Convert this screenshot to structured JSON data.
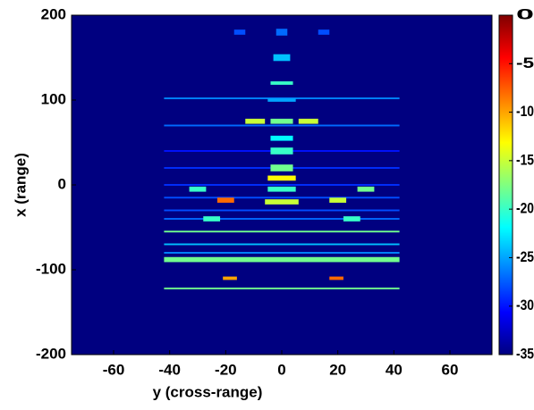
{
  "chart_data": {
    "type": "heatmap",
    "xlabel": "y (cross-range)",
    "ylabel": "x (range)",
    "xlim": [
      -75,
      75
    ],
    "ylim": [
      -200,
      200
    ],
    "xticks": [
      -60,
      -40,
      -20,
      0,
      20,
      40,
      60
    ],
    "yticks": [
      -200,
      -100,
      0,
      100,
      200
    ],
    "clim": [
      -35,
      0
    ],
    "cticks": [
      -35,
      -30,
      -25,
      -20,
      -15,
      -10,
      -5,
      0
    ],
    "colormap": "jet",
    "background": -35,
    "cells": [
      {
        "x": [
          -42,
          42
        ],
        "y": [
          -123,
          -121
        ],
        "value": -18
      },
      {
        "x": [
          -42,
          42
        ],
        "y": [
          -91,
          -85
        ],
        "value": -18
      },
      {
        "x": [
          -42,
          42
        ],
        "y": [
          -81,
          -79
        ],
        "value": -26
      },
      {
        "x": [
          -42,
          42
        ],
        "y": [
          -71,
          -69
        ],
        "value": -24
      },
      {
        "x": [
          -42,
          42
        ],
        "y": [
          -56,
          -54
        ],
        "value": -18
      },
      {
        "x": [
          -42,
          42
        ],
        "y": [
          -41,
          -39
        ],
        "value": -27
      },
      {
        "x": [
          -42,
          42
        ],
        "y": [
          -31,
          -29
        ],
        "value": -28
      },
      {
        "x": [
          -42,
          42
        ],
        "y": [
          -16,
          -14
        ],
        "value": -28
      },
      {
        "x": [
          -42,
          42
        ],
        "y": [
          -1,
          1
        ],
        "value": -29
      },
      {
        "x": [
          -42,
          42
        ],
        "y": [
          19,
          21
        ],
        "value": -29
      },
      {
        "x": [
          -42,
          42
        ],
        "y": [
          39,
          41
        ],
        "value": -30
      },
      {
        "x": [
          -42,
          42
        ],
        "y": [
          69,
          71
        ],
        "value": -27
      },
      {
        "x": [
          -42,
          42
        ],
        "y": [
          101,
          103
        ],
        "value": -26
      },
      {
        "x": [
          -4,
          4
        ],
        "y": [
          118,
          122
        ],
        "value": -20
      },
      {
        "x": [
          -5,
          5
        ],
        "y": [
          98,
          102
        ],
        "value": -25
      },
      {
        "x": [
          -4,
          4
        ],
        "y": [
          72,
          78
        ],
        "value": -18
      },
      {
        "x": [
          -4,
          4
        ],
        "y": [
          52,
          58
        ],
        "value": -22
      },
      {
        "x": [
          -4,
          4
        ],
        "y": [
          36,
          44
        ],
        "value": -20
      },
      {
        "x": [
          -4,
          4
        ],
        "y": [
          16,
          24
        ],
        "value": -18
      },
      {
        "x": [
          -5,
          5
        ],
        "y": [
          5,
          11
        ],
        "value": -13
      },
      {
        "x": [
          -5,
          5
        ],
        "y": [
          -8,
          -2
        ],
        "value": -20
      },
      {
        "x": [
          -6,
          6
        ],
        "y": [
          -23,
          -17
        ],
        "value": -15
      },
      {
        "x": [
          -23,
          -17
        ],
        "y": [
          -21,
          -15
        ],
        "value": -8
      },
      {
        "x": [
          17,
          23
        ],
        "y": [
          -21,
          -15
        ],
        "value": -15
      },
      {
        "x": [
          -21,
          -16
        ],
        "y": [
          -112,
          -108
        ],
        "value": -10
      },
      {
        "x": [
          17,
          22
        ],
        "y": [
          -112,
          -108
        ],
        "value": -8
      },
      {
        "x": [
          -13,
          -6
        ],
        "y": [
          72,
          78
        ],
        "value": -15
      },
      {
        "x": [
          6,
          13
        ],
        "y": [
          72,
          78
        ],
        "value": -15
      },
      {
        "x": [
          -33,
          -27
        ],
        "y": [
          -8,
          -2
        ],
        "value": -20
      },
      {
        "x": [
          27,
          33
        ],
        "y": [
          -8,
          -2
        ],
        "value": -18
      },
      {
        "x": [
          -28,
          -22
        ],
        "y": [
          -43,
          -37
        ],
        "value": -20
      },
      {
        "x": [
          22,
          28
        ],
        "y": [
          -43,
          -37
        ],
        "value": -20
      },
      {
        "x": [
          -2,
          2
        ],
        "y": [
          176,
          184
        ],
        "value": -27
      },
      {
        "x": [
          -17,
          -13
        ],
        "y": [
          177,
          183
        ],
        "value": -28
      },
      {
        "x": [
          13,
          17
        ],
        "y": [
          177,
          183
        ],
        "value": -28
      },
      {
        "x": [
          -3,
          3
        ],
        "y": [
          146,
          154
        ],
        "value": -24
      }
    ]
  }
}
